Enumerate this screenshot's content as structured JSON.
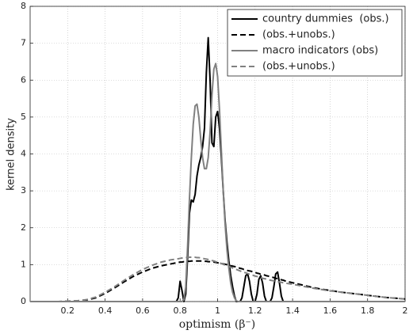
{
  "chart_data": {
    "type": "line",
    "xlabel": "optimism (β⁻)",
    "ylabel": "kernel density",
    "x": [
      0,
      0.05,
      0.1,
      0.15,
      0.2,
      0.25,
      0.3,
      0.35,
      0.4,
      0.45,
      0.5,
      0.55,
      0.6,
      0.65,
      0.7,
      0.75,
      0.78,
      0.79,
      0.8,
      0.81,
      0.82,
      0.83,
      0.84,
      0.85,
      0.86,
      0.87,
      0.88,
      0.89,
      0.9,
      0.91,
      0.92,
      0.93,
      0.94,
      0.95,
      0.96,
      0.97,
      0.98,
      0.99,
      1,
      1.01,
      1.02,
      1.03,
      1.04,
      1.05,
      1.06,
      1.07,
      1.08,
      1.09,
      1.1,
      1.11,
      1.12,
      1.13,
      1.14,
      1.15,
      1.16,
      1.17,
      1.18,
      1.19,
      1.2,
      1.21,
      1.22,
      1.23,
      1.24,
      1.25,
      1.26,
      1.27,
      1.28,
      1.29,
      1.3,
      1.31,
      1.32,
      1.33,
      1.34,
      1.35,
      1.36,
      1.4,
      1.45,
      1.5,
      1.55,
      1.6,
      1.65,
      1.7,
      1.75,
      1.8,
      1.85,
      1.9,
      1.95,
      2
    ],
    "series": [
      {
        "name": "country dummies  (obs.)",
        "color": "#000000",
        "linestyle": "solid",
        "values": [
          0,
          0,
          0,
          0,
          0,
          0,
          0,
          0,
          0,
          0,
          0,
          0,
          0,
          0,
          0,
          0,
          0,
          0.1,
          0.55,
          0.3,
          0,
          0.2,
          1.2,
          2.4,
          2.75,
          2.7,
          2.9,
          3.4,
          3.7,
          3.9,
          4.2,
          4.7,
          6.2,
          7.15,
          6.0,
          4.3,
          4.2,
          5.0,
          5.15,
          4.7,
          3.9,
          3.0,
          2.2,
          1.6,
          1.1,
          0.7,
          0.4,
          0.15,
          0,
          0,
          0,
          0.1,
          0.4,
          0.7,
          0.75,
          0.55,
          0.2,
          0,
          0,
          0.2,
          0.6,
          0.7,
          0.5,
          0.15,
          0,
          0,
          0,
          0.1,
          0.4,
          0.75,
          0.8,
          0.5,
          0.15,
          0,
          0,
          0,
          0,
          0,
          0,
          0,
          0,
          0,
          0,
          0,
          0,
          0,
          0,
          0
        ]
      },
      {
        "name": "(obs.+unobs.)",
        "color": "#000000",
        "linestyle": "dashed",
        "values": [
          0,
          0,
          0,
          0,
          0.01,
          0.02,
          0.04,
          0.1,
          0.22,
          0.37,
          0.53,
          0.68,
          0.8,
          0.9,
          0.97,
          1.02,
          1.05,
          1.06,
          1.07,
          1.07,
          1.08,
          1.08,
          1.09,
          1.09,
          1.1,
          1.1,
          1.1,
          1.1,
          1.1,
          1.1,
          1.1,
          1.09,
          1.09,
          1.08,
          1.08,
          1.07,
          1.07,
          1.06,
          1.05,
          1.04,
          1.03,
          1.02,
          1.01,
          1.0,
          0.99,
          0.97,
          0.96,
          0.95,
          0.93,
          0.92,
          0.9,
          0.89,
          0.87,
          0.86,
          0.84,
          0.83,
          0.82,
          0.8,
          0.79,
          0.77,
          0.76,
          0.74,
          0.73,
          0.72,
          0.7,
          0.69,
          0.67,
          0.66,
          0.65,
          0.63,
          0.62,
          0.6,
          0.59,
          0.58,
          0.56,
          0.51,
          0.45,
          0.39,
          0.34,
          0.3,
          0.26,
          0.23,
          0.2,
          0.17,
          0.14,
          0.11,
          0.09,
          0.07
        ]
      },
      {
        "name": "macro indicators (obs)",
        "color": "#808080",
        "linestyle": "solid",
        "values": [
          0,
          0,
          0,
          0,
          0,
          0,
          0,
          0,
          0,
          0,
          0,
          0,
          0,
          0,
          0,
          0,
          0,
          0,
          0,
          0,
          0.05,
          0.4,
          1.5,
          2.8,
          3.9,
          4.8,
          5.3,
          5.35,
          5.0,
          4.4,
          3.9,
          3.6,
          3.6,
          3.9,
          4.6,
          5.6,
          6.3,
          6.45,
          6.1,
          5.2,
          4.1,
          3.0,
          2.1,
          1.4,
          0.9,
          0.5,
          0.25,
          0.1,
          0.02,
          0,
          0,
          0,
          0,
          0,
          0,
          0,
          0,
          0,
          0,
          0,
          0,
          0,
          0,
          0,
          0,
          0,
          0,
          0,
          0,
          0,
          0,
          0,
          0,
          0,
          0,
          0,
          0,
          0,
          0,
          0,
          0,
          0,
          0,
          0,
          0,
          0,
          0,
          0
        ]
      },
      {
        "name": "(obs.+unobs.)",
        "color": "#808080",
        "linestyle": "dashed",
        "values": [
          0,
          0,
          0,
          0,
          0.01,
          0.02,
          0.05,
          0.12,
          0.25,
          0.4,
          0.57,
          0.73,
          0.87,
          0.98,
          1.07,
          1.13,
          1.15,
          1.16,
          1.17,
          1.18,
          1.19,
          1.19,
          1.2,
          1.2,
          1.2,
          1.2,
          1.2,
          1.19,
          1.19,
          1.18,
          1.17,
          1.16,
          1.15,
          1.14,
          1.13,
          1.11,
          1.1,
          1.08,
          1.07,
          1.05,
          1.03,
          1.01,
          0.99,
          0.97,
          0.95,
          0.93,
          0.91,
          0.89,
          0.87,
          0.85,
          0.83,
          0.81,
          0.79,
          0.78,
          0.76,
          0.74,
          0.72,
          0.71,
          0.69,
          0.68,
          0.66,
          0.65,
          0.63,
          0.62,
          0.61,
          0.6,
          0.58,
          0.57,
          0.56,
          0.55,
          0.54,
          0.53,
          0.52,
          0.51,
          0.5,
          0.47,
          0.42,
          0.37,
          0.33,
          0.29,
          0.26,
          0.23,
          0.2,
          0.17,
          0.14,
          0.11,
          0.09,
          0.07
        ]
      }
    ],
    "xlim": [
      0,
      2
    ],
    "ylim": [
      0,
      8
    ],
    "xticks": [
      0.2,
      0.4,
      0.6,
      0.8,
      1,
      1.2,
      1.4,
      1.6,
      1.8,
      2
    ],
    "yticks": [
      0,
      1,
      2,
      3,
      4,
      5,
      6,
      7,
      8
    ],
    "grid": true,
    "legend": "upper right"
  }
}
